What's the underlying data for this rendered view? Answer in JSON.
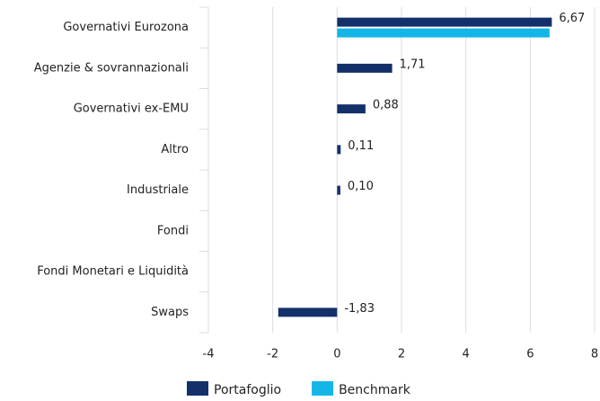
{
  "chart_data": {
    "type": "bar",
    "orientation": "horizontal",
    "categories": [
      "Governativi Eurozona",
      "Agenzie & sovrannazionali",
      "Governativi ex-EMU",
      "Altro",
      "Industriale",
      "Fondi",
      "Fondi Monetari e Liquidità",
      "Swaps"
    ],
    "series": [
      {
        "name": "Portafoglio",
        "color": "#14306b",
        "values": [
          6.67,
          1.71,
          0.88,
          0.11,
          0.1,
          null,
          null,
          -1.83
        ],
        "value_labels": [
          "6,67",
          "1,71",
          "0,88",
          "0,11",
          "0,10",
          null,
          null,
          "-1,83"
        ]
      },
      {
        "name": "Benchmark",
        "color": "#14b6e8",
        "values": [
          6.6,
          null,
          null,
          null,
          null,
          null,
          null,
          null
        ]
      }
    ],
    "xlim": [
      -4,
      8
    ],
    "xticks": [
      -4,
      -2,
      0,
      2,
      4,
      6,
      8
    ],
    "grid": true,
    "legend": "bottom"
  }
}
